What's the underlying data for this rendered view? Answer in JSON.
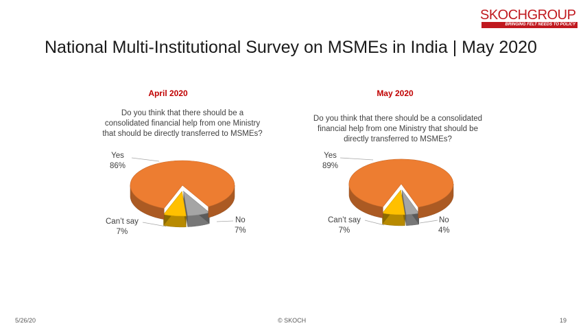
{
  "logo": {
    "text": "SKOCHGROUP",
    "tagline": "BRINGING FELT NEEDS TO POLICY"
  },
  "slide_title": "National Multi-Institutional Survey on MSMEs in India | May 2020",
  "colors": {
    "yes": "#ED7D31",
    "cant_say": "#FFC000",
    "no": "#A5A5A5",
    "heading": "#C00000"
  },
  "chart_data": [
    {
      "type": "pie",
      "title": "April 2020",
      "question": "Do you think that there should be a consolidated financial help from one Ministry that should be directly transferred to MSMEs?",
      "question_lines": [
        "Do you think that there should be a",
        "consolidated financial help from one Ministry",
        "that should be directly transferred to MSMEs?"
      ],
      "categories": [
        "Yes",
        "No",
        "Can’t say"
      ],
      "values": [
        86,
        7,
        7
      ],
      "data_labels": [
        "86%",
        "7%",
        "7%"
      ]
    },
    {
      "type": "pie",
      "title": "May 2020",
      "question": "Do you think that there should be a consolidated financial help from one Ministry that should be directly transferred to MSMEs?",
      "question_lines": [
        "Do you think that there should be a consolidated",
        "financial help from one Ministry that should be",
        "directly transferred to MSMEs?"
      ],
      "categories": [
        "Yes",
        "No",
        "Can’t say"
      ],
      "values": [
        89,
        4,
        7
      ],
      "data_labels": [
        "89%",
        "4%",
        "7%"
      ]
    }
  ],
  "footer": {
    "date": "5/26/20",
    "copyright": "© SKOCH",
    "page": "19"
  }
}
